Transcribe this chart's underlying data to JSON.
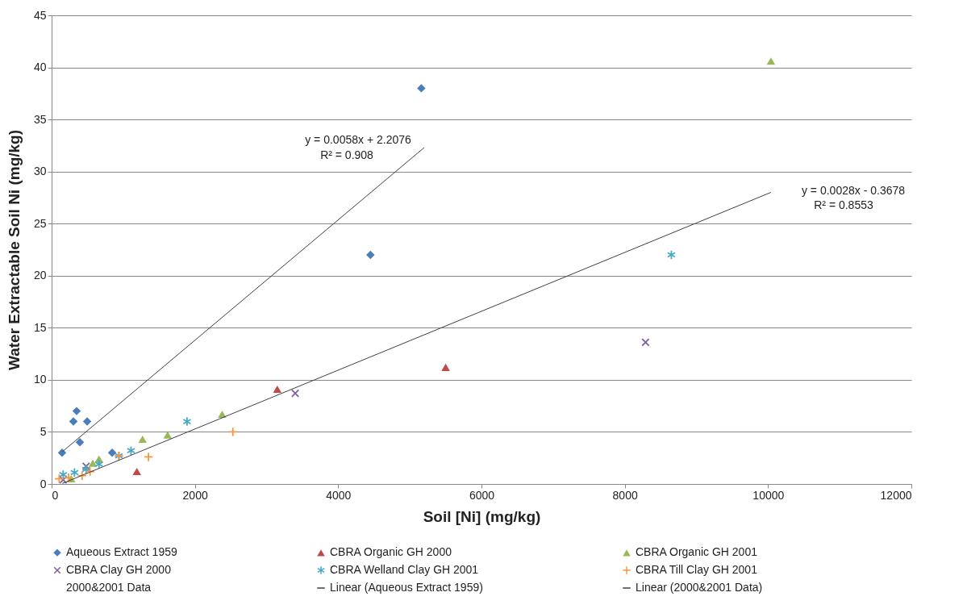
{
  "chart_data": {
    "type": "scatter",
    "xlabel": "Soil [Ni] (mg/kg)",
    "ylabel": "Water Extractable Soil Ni (mg/kg)",
    "xlim": [
      0,
      12000
    ],
    "xticks": [
      0,
      2000,
      4000,
      6000,
      8000,
      10000,
      12000
    ],
    "ylim": [
      0,
      45
    ],
    "yticks": [
      0,
      5,
      10,
      15,
      20,
      25,
      30,
      35,
      40,
      45
    ],
    "grid": "y",
    "legend": "bottom",
    "series": [
      {
        "name": "Aqueous Extract 1959",
        "marker": "diamond",
        "color": "#4a7ebb",
        "x": [
          146,
          304,
          349,
          496,
          394,
          845,
          4450,
          5160
        ],
        "values": [
          3.0,
          6.0,
          7.0,
          6.0,
          4.0,
          3.0,
          22.0,
          38.0
        ]
      },
      {
        "name": "CBRA Organic GH 2000",
        "marker": "triangle",
        "color": "#be4b48",
        "x": [
          1190,
          3150,
          5500
        ],
        "values": [
          1.2,
          9.1,
          11.2
        ]
      },
      {
        "name": "CBRA Organic GH 2001",
        "marker": "triangle",
        "color": "#98b954",
        "x": [
          272,
          575,
          661,
          1269,
          1619,
          2380,
          10040
        ],
        "values": [
          0.5,
          2.0,
          2.4,
          4.3,
          4.7,
          6.7,
          40.6
        ]
      },
      {
        "name": "CBRA Clay GH 2000",
        "marker": "x",
        "color": "#7d60a0",
        "x": [
          161,
          481,
          3400,
          8290
        ],
        "values": [
          0.4,
          1.7,
          8.7,
          13.6
        ]
      },
      {
        "name": "CBRA Welland Clay GH 2001",
        "marker": "cross",
        "color": "#46aac5",
        "x": [
          161,
          319,
          481,
          661,
          939,
          1108,
          1890,
          8650
        ],
        "values": [
          0.9,
          1.1,
          1.4,
          1.9,
          2.7,
          3.2,
          6.0,
          22.0
        ]
      },
      {
        "name": "CBRA Till Clay GH 2001",
        "marker": "cross",
        "color": "#f79646",
        "x": [
          105,
          237,
          425,
          537,
          939,
          1352,
          2530
        ],
        "values": [
          0.5,
          0.6,
          0.8,
          1.2,
          2.7,
          2.6,
          5.0
        ]
      },
      {
        "name": "2000&2001 Data",
        "marker": "none"
      },
      {
        "name": "Linear (Aqueous Extract 1959)",
        "type": "line",
        "color": "#404040",
        "x": [
          150,
          5200
        ],
        "values": [
          3.1,
          32.3
        ]
      },
      {
        "name": "Linear (2000&2001 Data)",
        "type": "line",
        "color": "#404040",
        "x": [
          150,
          10040
        ],
        "values": [
          0.05,
          28.0
        ]
      }
    ],
    "annotations": [
      "y = 0.0058x + 2.2076",
      "R² = 0.908",
      "y = 0.0028x - 0.3678",
      "R² = 0.8553"
    ]
  }
}
